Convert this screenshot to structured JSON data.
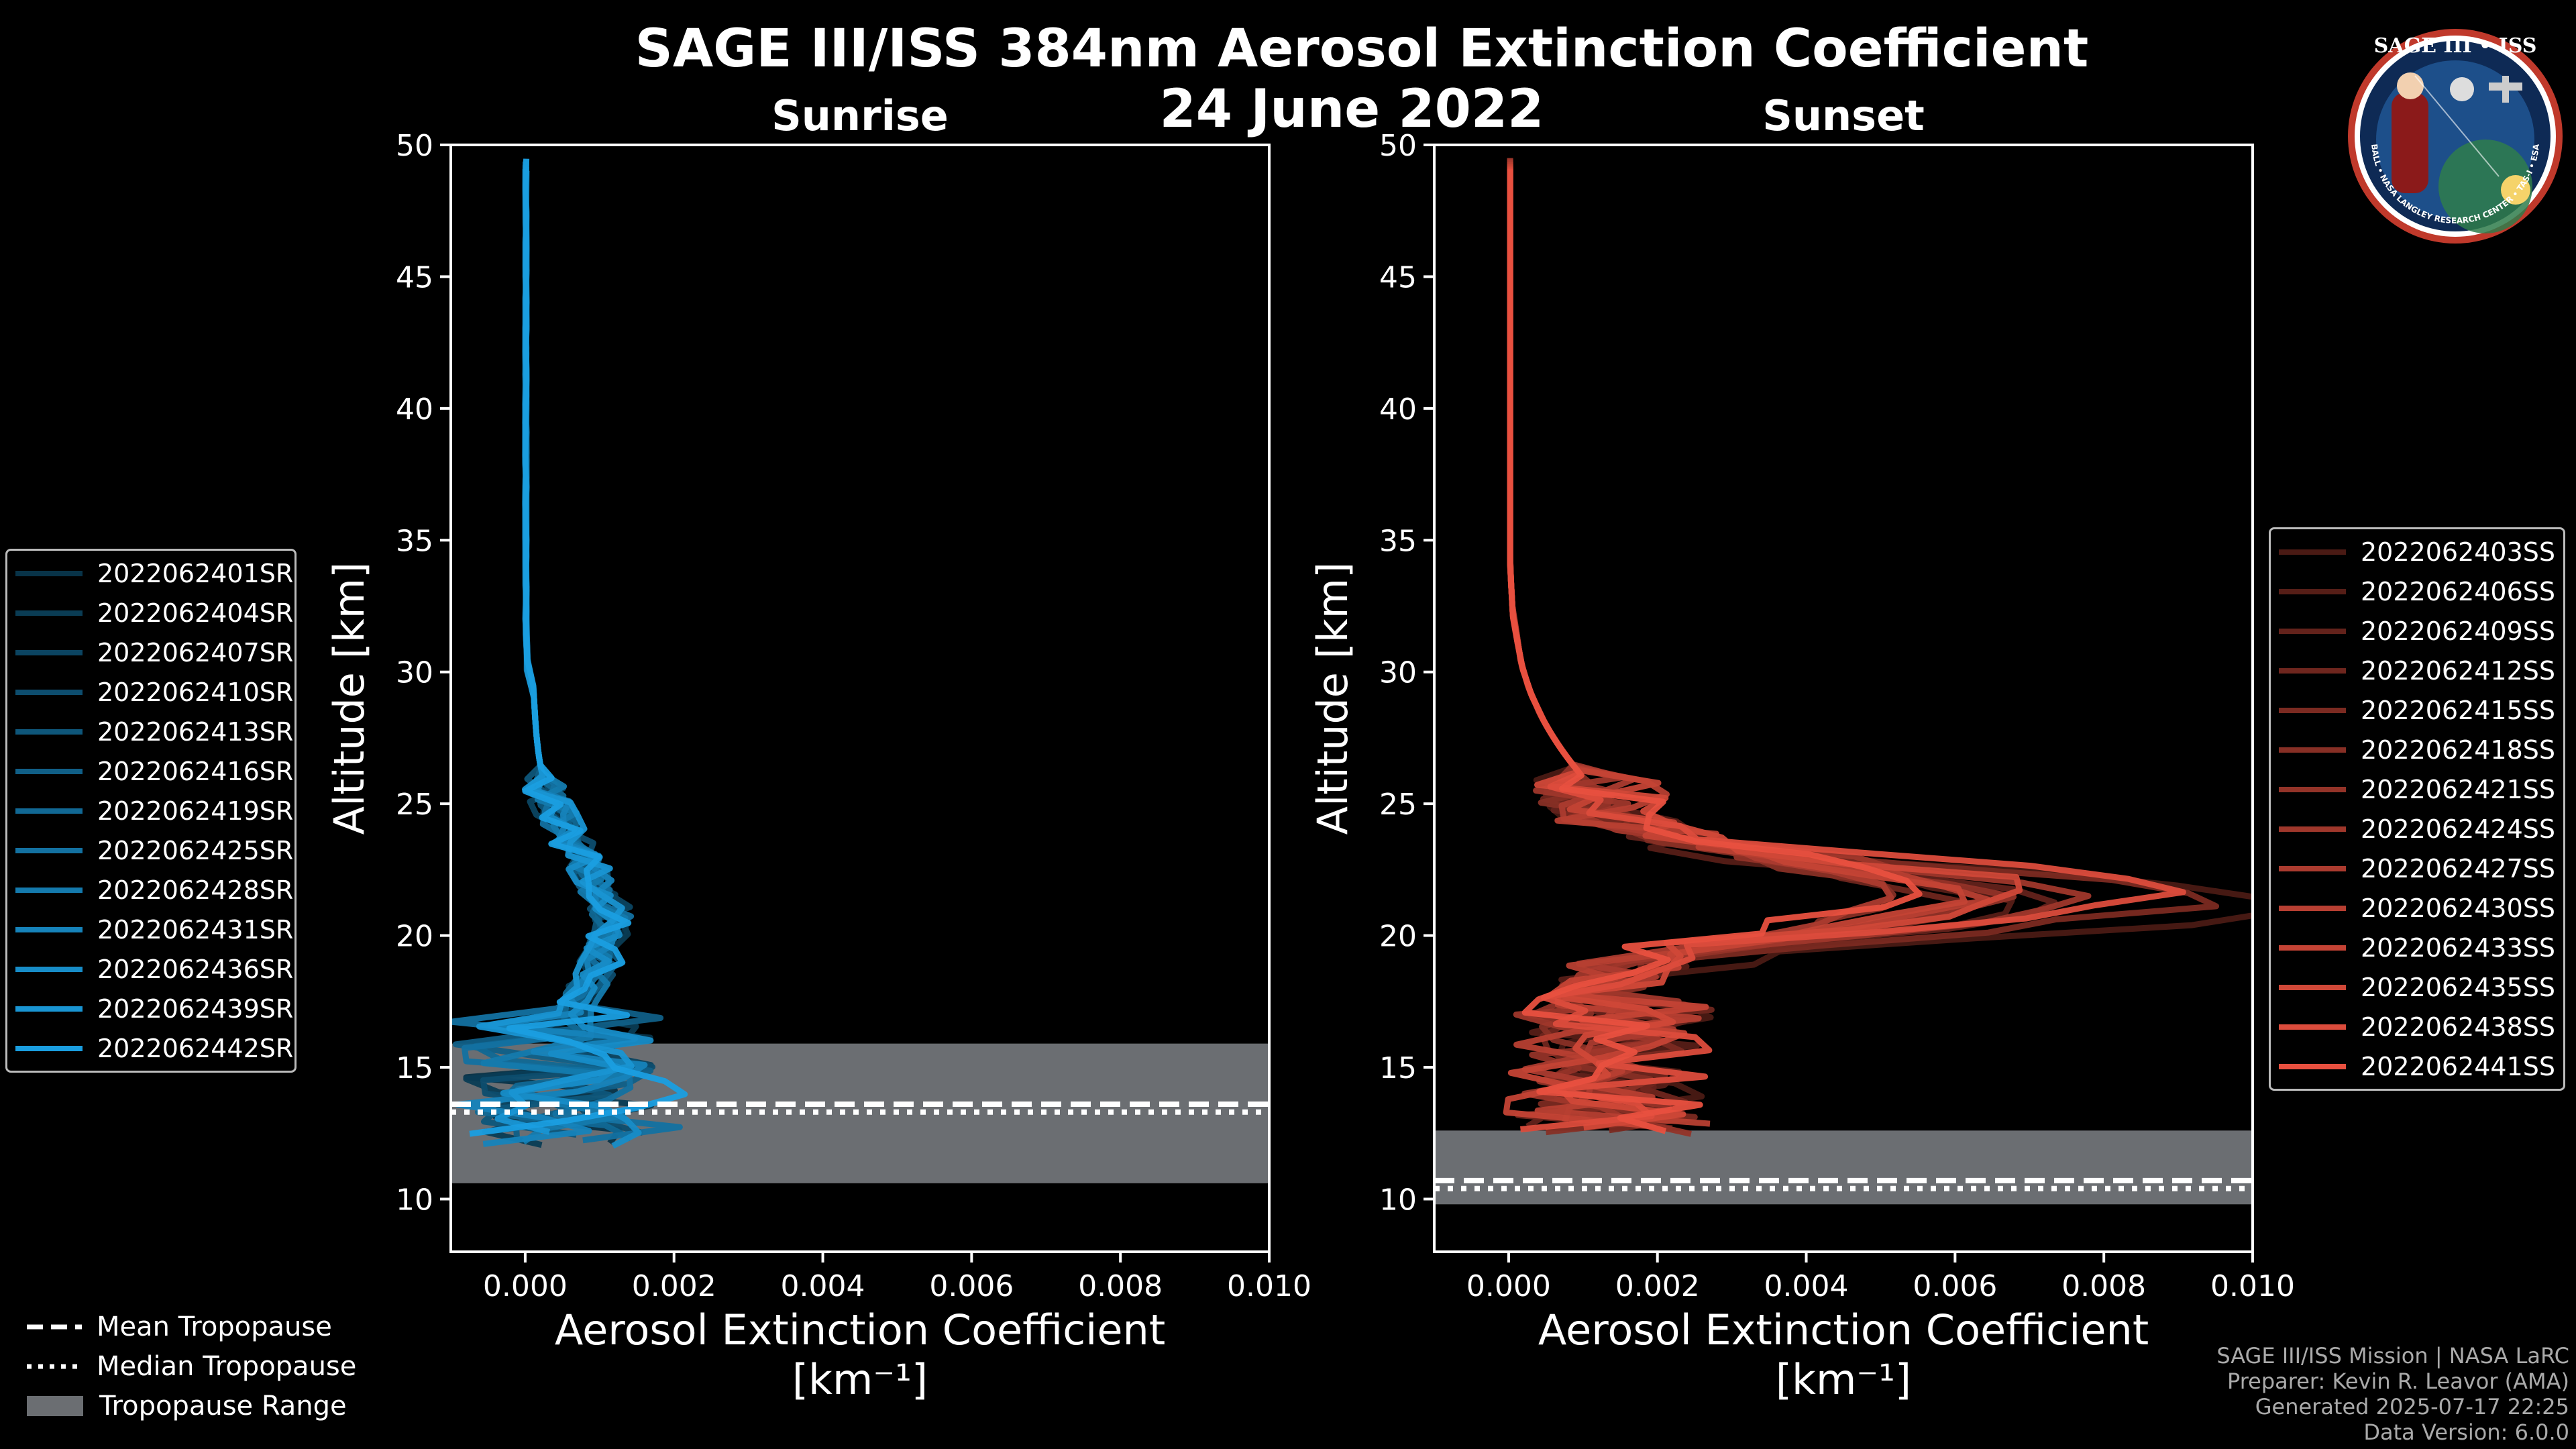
{
  "title": "SAGE III/ISS 384nm Aerosol Extinction Coefficient",
  "date": "24 June 2022",
  "colors": {
    "sunrise": "#1a9ee0",
    "sunset": "#e8503f",
    "tropopause_range": "#6b6e72"
  },
  "chart_data": [
    {
      "type": "line",
      "title": "Sunrise",
      "xlabel": "Aerosol Extinction Coefficient",
      "xunit": "[km⁻¹]",
      "ylabel": "Altitude [km]",
      "xlim": [
        -0.001,
        0.01
      ],
      "ylim": [
        8,
        50
      ],
      "xticks": [
        "0.000",
        "0.002",
        "0.004",
        "0.006",
        "0.008",
        "0.010"
      ],
      "yticks": [
        "10",
        "15",
        "20",
        "25",
        "30",
        "35",
        "40",
        "45",
        "50"
      ],
      "tropopause": {
        "mean": 13.6,
        "median": 13.3,
        "range": [
          10.6,
          15.9
        ]
      },
      "series": [
        {
          "name": "2022062401SR",
          "peak": 0.0022
        },
        {
          "name": "2022062404SR",
          "peak": 0.0018
        },
        {
          "name": "2022062407SR",
          "peak": 0.0016
        },
        {
          "name": "2022062410SR",
          "peak": 0.002
        },
        {
          "name": "2022062413SR",
          "peak": 0.0014
        },
        {
          "name": "2022062416SR",
          "peak": 0.0019
        },
        {
          "name": "2022062419SR",
          "peak": 0.0017
        },
        {
          "name": "2022062425SR",
          "peak": 0.0023
        },
        {
          "name": "2022062428SR",
          "peak": 0.0015
        },
        {
          "name": "2022062431SR",
          "peak": 0.0021
        },
        {
          "name": "2022062436SR",
          "peak": 0.0018
        },
        {
          "name": "2022062439SR",
          "peak": 0.0024
        },
        {
          "name": "2022062442SR",
          "peak": 0.0025
        }
      ]
    },
    {
      "type": "line",
      "title": "Sunset",
      "xlabel": "Aerosol Extinction Coefficient",
      "xunit": "[km⁻¹]",
      "ylabel": "Altitude [km]",
      "xlim": [
        -0.001,
        0.01
      ],
      "ylim": [
        8,
        50
      ],
      "xticks": [
        "0.000",
        "0.002",
        "0.004",
        "0.006",
        "0.008",
        "0.010"
      ],
      "yticks": [
        "10",
        "15",
        "20",
        "25",
        "30",
        "35",
        "40",
        "45",
        "50"
      ],
      "tropopause": {
        "mean": 10.7,
        "median": 10.4,
        "range": [
          9.8,
          12.6
        ]
      },
      "series": [
        {
          "name": "2022062403SS",
          "peak": 0.0105
        },
        {
          "name": "2022062406SS",
          "peak": 0.0068
        },
        {
          "name": "2022062409SS",
          "peak": 0.0072
        },
        {
          "name": "2022062412SS",
          "peak": 0.006
        },
        {
          "name": "2022062415SS",
          "peak": 0.0092
        },
        {
          "name": "2022062418SS",
          "peak": 0.0055
        },
        {
          "name": "2022062421SS",
          "peak": 0.0066
        },
        {
          "name": "2022062424SS",
          "peak": 0.0078
        },
        {
          "name": "2022062427SS",
          "peak": 0.005
        },
        {
          "name": "2022062430SS",
          "peak": 0.0062
        },
        {
          "name": "2022062433SS",
          "peak": 0.0058
        },
        {
          "name": "2022062435SS",
          "peak": 0.007
        },
        {
          "name": "2022062438SS",
          "peak": 0.0087
        },
        {
          "name": "2022062441SS",
          "peak": 0.0056
        }
      ]
    }
  ],
  "tropopause_legend": {
    "mean": "Mean Tropopause",
    "median": "Median Tropopause",
    "range": "Tropopause Range"
  },
  "footer": {
    "line1": "SAGE III/ISS Mission | NASA LaRC",
    "line2": "Preparer: Kevin R. Leavor (AMA)",
    "line3": "Generated 2025-07-17 22:25",
    "line4": "Data Version: 6.0.0"
  },
  "badge": {
    "title": "SAGE III • ISS",
    "ring_text": "BALL • NASA LANGLEY RESEARCH CENTER • TAS-I • ESA"
  }
}
